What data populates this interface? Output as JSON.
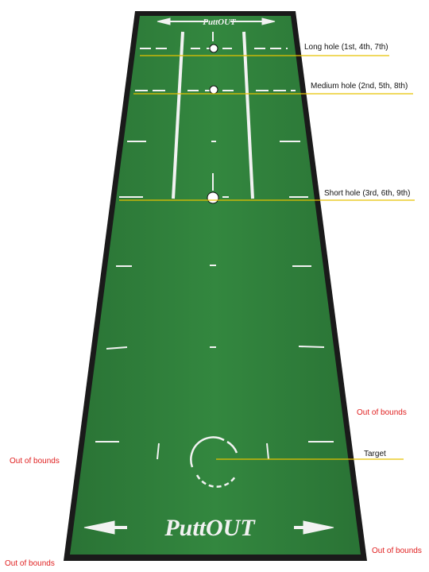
{
  "brand": {
    "logo_text": "PuttOUT"
  },
  "callouts": {
    "long_hole": "Long hole (1st, 4th, 7th)",
    "medium_hole": "Medium hole (2nd, 5th, 8th)",
    "short_hole": "Short hole (3rd, 6th, 9th)",
    "target": "Target"
  },
  "out_of_bounds": {
    "right": "Out of bounds",
    "left": "Out of bounds",
    "bottom_left": "Out of bounds",
    "bottom_right": "Out of bounds"
  },
  "colors": {
    "mat_green": "#2f7f3b",
    "mat_border": "#1a1a1a",
    "marking": "#f2f2f2",
    "callout_line": "#e6c200",
    "out_of_bounds_text": "#e02020"
  }
}
